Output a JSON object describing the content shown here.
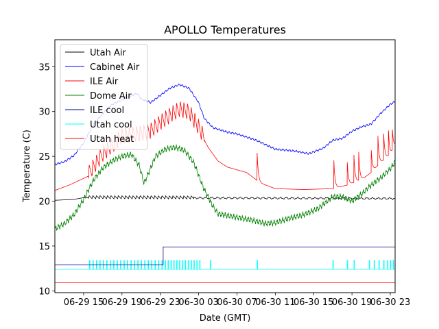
{
  "chart_data": {
    "type": "line",
    "title": "APOLLO Temperatures",
    "xlabel": "Date (GMT)",
    "ylabel": "Temperature (C)",
    "xlim": [
      12,
      47.5
    ],
    "ylim": [
      9.8,
      38
    ],
    "x_unit": "hours since 06-29 00:00 GMT",
    "x_ticks": [
      15,
      19,
      23,
      27,
      31,
      35,
      39,
      43,
      47
    ],
    "x_tick_labels": [
      "06-29 15",
      "06-29 19",
      "06-29 23",
      "06-30 03",
      "06-30 07",
      "06-30 11",
      "06-30 15",
      "06-30 19",
      "06-30 23"
    ],
    "y_ticks": [
      10,
      15,
      20,
      25,
      30,
      35
    ],
    "y_tick_labels": [
      "10",
      "15",
      "20",
      "25",
      "30",
      "35"
    ],
    "legend_position": "top-left",
    "grid": false,
    "series": [
      {
        "name": "Utah Air",
        "color": "#000000",
        "kind": "curve",
        "points": [
          [
            12,
            20.1
          ],
          [
            14,
            20.2
          ],
          [
            15,
            20.4
          ],
          [
            47.5,
            20.3
          ]
        ],
        "oscillation": {
          "start": 15.5,
          "end": 26.5,
          "period": 0.38,
          "amplitude": 0.35
        },
        "ripple": {
          "start": 26.5,
          "end": 47.5,
          "period": 0.6,
          "amplitude": 0.08
        }
      },
      {
        "name": "Cabinet Air",
        "color": "#0000ff",
        "kind": "curve",
        "points": [
          [
            12,
            24.1
          ],
          [
            13,
            24.4
          ],
          [
            14,
            25.1
          ],
          [
            15,
            26.5
          ],
          [
            16,
            28.5
          ],
          [
            17,
            29.8
          ],
          [
            18,
            30.8
          ],
          [
            19,
            31.3
          ],
          [
            20,
            31.8
          ],
          [
            20.6,
            32.0
          ],
          [
            21,
            31.4
          ],
          [
            22,
            31.0
          ],
          [
            23,
            31.8
          ],
          [
            24,
            32.6
          ],
          [
            25,
            33.0
          ],
          [
            26,
            32.6
          ],
          [
            27,
            31.0
          ],
          [
            27.6,
            29.2
          ],
          [
            28.5,
            28.2
          ],
          [
            30,
            27.7
          ],
          [
            31,
            27.5
          ],
          [
            33,
            26.8
          ],
          [
            35,
            25.8
          ],
          [
            37,
            25.6
          ],
          [
            38.5,
            25.3
          ],
          [
            40,
            25.9
          ],
          [
            41,
            26.8
          ],
          [
            42,
            27.0
          ],
          [
            43,
            27.8
          ],
          [
            44,
            28.3
          ],
          [
            45,
            28.6
          ],
          [
            46,
            29.8
          ],
          [
            47,
            30.8
          ],
          [
            47.5,
            31.1
          ]
        ],
        "ripple": {
          "start": 12,
          "end": 47.5,
          "period": 0.35,
          "amplitude": 0.08
        }
      },
      {
        "name": "ILE Air",
        "color": "#ff0000",
        "kind": "curve",
        "points": [
          [
            12,
            21.2
          ],
          [
            13.5,
            21.8
          ],
          [
            15.5,
            22.8
          ],
          [
            17,
            25.0
          ],
          [
            19,
            27.0
          ],
          [
            21,
            27.3
          ],
          [
            22,
            27.6
          ],
          [
            23,
            28.5
          ],
          [
            24,
            29.3
          ],
          [
            25,
            30.0
          ],
          [
            26,
            29.7
          ],
          [
            27,
            28.0
          ],
          [
            28,
            26.0
          ],
          [
            29,
            24.5
          ],
          [
            30,
            23.8
          ],
          [
            31,
            23.5
          ],
          [
            32,
            23.2
          ],
          [
            33.5,
            22.0
          ],
          [
            35,
            21.4
          ],
          [
            38,
            21.3
          ],
          [
            41,
            21.4
          ],
          [
            42.5,
            21.8
          ],
          [
            44,
            22.4
          ],
          [
            45,
            23.2
          ],
          [
            46,
            24.3
          ],
          [
            47,
            25.2
          ],
          [
            47.5,
            26.2
          ]
        ],
        "oscillation": {
          "start": 15.5,
          "end": 27.6,
          "period": 0.38,
          "amplitude": 1.8
        },
        "spikes": [
          [
            33.1,
            3.2
          ],
          [
            41.1,
            3.4
          ],
          [
            42.5,
            2.8
          ],
          [
            43.2,
            3.2
          ],
          [
            43.7,
            3.2
          ],
          [
            45.0,
            2.8
          ],
          [
            45.7,
            3.5
          ],
          [
            46.3,
            3.2
          ],
          [
            46.8,
            3.0
          ],
          [
            47.2,
            2.6
          ]
        ]
      },
      {
        "name": "Dome Air",
        "color": "#008000",
        "kind": "curve",
        "points": [
          [
            12,
            16.9
          ],
          [
            13,
            17.5
          ],
          [
            14,
            18.5
          ],
          [
            15,
            20.2
          ],
          [
            16,
            22.3
          ],
          [
            17,
            23.7
          ],
          [
            18,
            24.5
          ],
          [
            19,
            25.0
          ],
          [
            20,
            25.2
          ],
          [
            20.8,
            24.0
          ],
          [
            21.3,
            22.0
          ],
          [
            21.8,
            23.2
          ],
          [
            22.5,
            25.0
          ],
          [
            23.5,
            25.8
          ],
          [
            24.5,
            26.0
          ],
          [
            25.5,
            25.7
          ],
          [
            26.5,
            24.3
          ],
          [
            27.5,
            21.5
          ],
          [
            28.3,
            19.8
          ],
          [
            29,
            18.6
          ],
          [
            30,
            18.4
          ],
          [
            31,
            18.2
          ],
          [
            32.5,
            17.9
          ],
          [
            34,
            17.5
          ],
          [
            35,
            17.6
          ],
          [
            36.5,
            18.1
          ],
          [
            38,
            18.5
          ],
          [
            39.5,
            19.2
          ],
          [
            41,
            20.5
          ],
          [
            42,
            20.5
          ],
          [
            43,
            20.0
          ],
          [
            44,
            20.8
          ],
          [
            45,
            21.8
          ],
          [
            46,
            22.6
          ],
          [
            47,
            23.6
          ],
          [
            47.5,
            24.4
          ]
        ],
        "ripple": {
          "start": 12,
          "end": 47.5,
          "period": 0.3,
          "amplitude": 0.22
        }
      },
      {
        "name": "ILE cool",
        "color": "#00008b",
        "kind": "step",
        "points": [
          [
            12,
            12.9
          ],
          [
            23.3,
            12.9
          ],
          [
            23.3,
            14.9
          ],
          [
            47.5,
            14.9
          ]
        ]
      },
      {
        "name": "Utah cool",
        "color": "#00ffff",
        "kind": "pulses",
        "base": 12.4,
        "pulse_height": 13.4,
        "pulse_ranges": [
          [
            15.6,
            23.3,
            0.36
          ],
          [
            23.5,
            27.2,
            0.3
          ]
        ],
        "pulse_times": [
          28.2,
          33.1,
          41.0,
          42.5,
          43.2,
          44.8,
          45.3,
          45.8,
          46.3,
          46.7,
          47.0,
          47.3
        ]
      },
      {
        "name": "Utah heat",
        "color": "#ff0000",
        "kind": "step",
        "points": [
          [
            12,
            10.9
          ],
          [
            47.5,
            10.9
          ]
        ]
      }
    ]
  }
}
